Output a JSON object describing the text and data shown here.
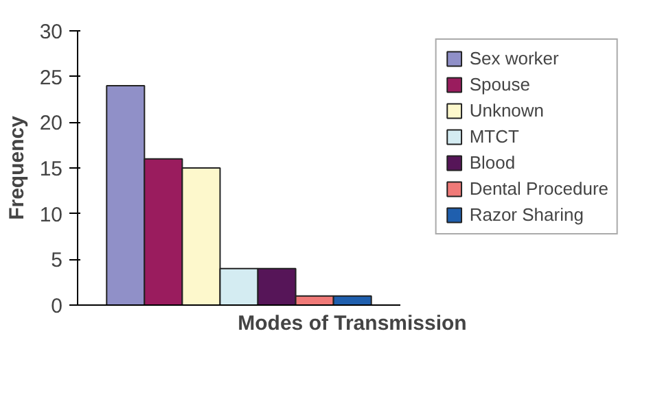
{
  "chart_data": {
    "type": "bar",
    "xlabel": "Modes of Transmission",
    "ylabel": "Frequency",
    "categories": [
      null
    ],
    "series": [
      {
        "name": "Sex worker",
        "color": "#9090c8",
        "values": [
          24
        ]
      },
      {
        "name": "Spouse",
        "color": "#9a1c5e",
        "values": [
          16
        ]
      },
      {
        "name": "Unknown",
        "color": "#fdf8cc",
        "values": [
          15
        ]
      },
      {
        "name": "MTCT",
        "color": "#d4ecf2",
        "values": [
          4
        ]
      },
      {
        "name": "Blood",
        "color": "#561558",
        "values": [
          4
        ]
      },
      {
        "name": "Dental Procedure",
        "color": "#f07a78",
        "values": [
          1
        ]
      },
      {
        "name": "Razor Sharing",
        "color": "#1f5fae",
        "values": [
          1
        ]
      }
    ],
    "ylim": [
      0,
      30
    ],
    "yticks": [
      0,
      5,
      10,
      15,
      20,
      25,
      30
    ],
    "legend": "right"
  }
}
